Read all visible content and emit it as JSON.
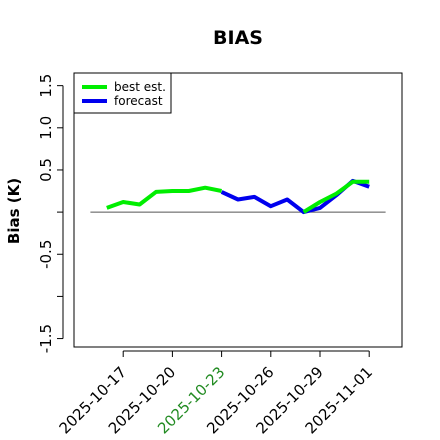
{
  "chart_data": {
    "type": "line",
    "title": "BIAS",
    "xlabel": "",
    "ylabel": "Bias (K)",
    "ylim": [
      -1.6,
      1.65
    ],
    "yticks": [
      -1.5,
      -1.0,
      -0.5,
      0.0,
      0.5,
      1.0,
      1.5
    ],
    "ytick_labels": [
      "-1.5",
      "",
      "-0.5",
      "",
      "0.5",
      "1.0",
      "1.5"
    ],
    "xlim": [
      "2025-10-14",
      "2025-11-03"
    ],
    "xticks": [
      "2025-10-17",
      "2025-10-20",
      "2025-10-23",
      "2025-10-26",
      "2025-10-29",
      "2025-11-01"
    ],
    "xtick_colors": [
      "#000000",
      "#000000",
      "#228B22",
      "#000000",
      "#000000",
      "#000000"
    ],
    "hline": 0.0,
    "grid": false,
    "legend_position": "top-left",
    "series": [
      {
        "name": "best est.",
        "color": "#00ee00",
        "x": [
          "2025-10-16",
          "2025-10-17",
          "2025-10-18",
          "2025-10-19",
          "2025-10-20",
          "2025-10-21",
          "2025-10-22",
          "2025-10-23"
        ],
        "y": [
          0.05,
          0.12,
          0.09,
          0.24,
          0.25,
          0.25,
          0.29,
          0.25
        ]
      },
      {
        "name": "forecast",
        "color": "#0000ee",
        "x": [
          "2025-10-23",
          "2025-10-24",
          "2025-10-25",
          "2025-10-26",
          "2025-10-27",
          "2025-10-28",
          "2025-10-29",
          "2025-10-30",
          "2025-10-31",
          "2025-11-01"
        ],
        "y": [
          0.24,
          0.15,
          0.18,
          0.07,
          0.15,
          0.0,
          0.05,
          0.2,
          0.37,
          0.3
        ]
      },
      {
        "name": "",
        "color": "#00ee00",
        "x": [
          "2025-10-28",
          "2025-10-29",
          "2025-10-30",
          "2025-10-31",
          "2025-11-01"
        ],
        "y": [
          0.0,
          0.12,
          0.22,
          0.36,
          0.36
        ]
      }
    ],
    "legend": [
      "best est.",
      "forecast"
    ]
  }
}
